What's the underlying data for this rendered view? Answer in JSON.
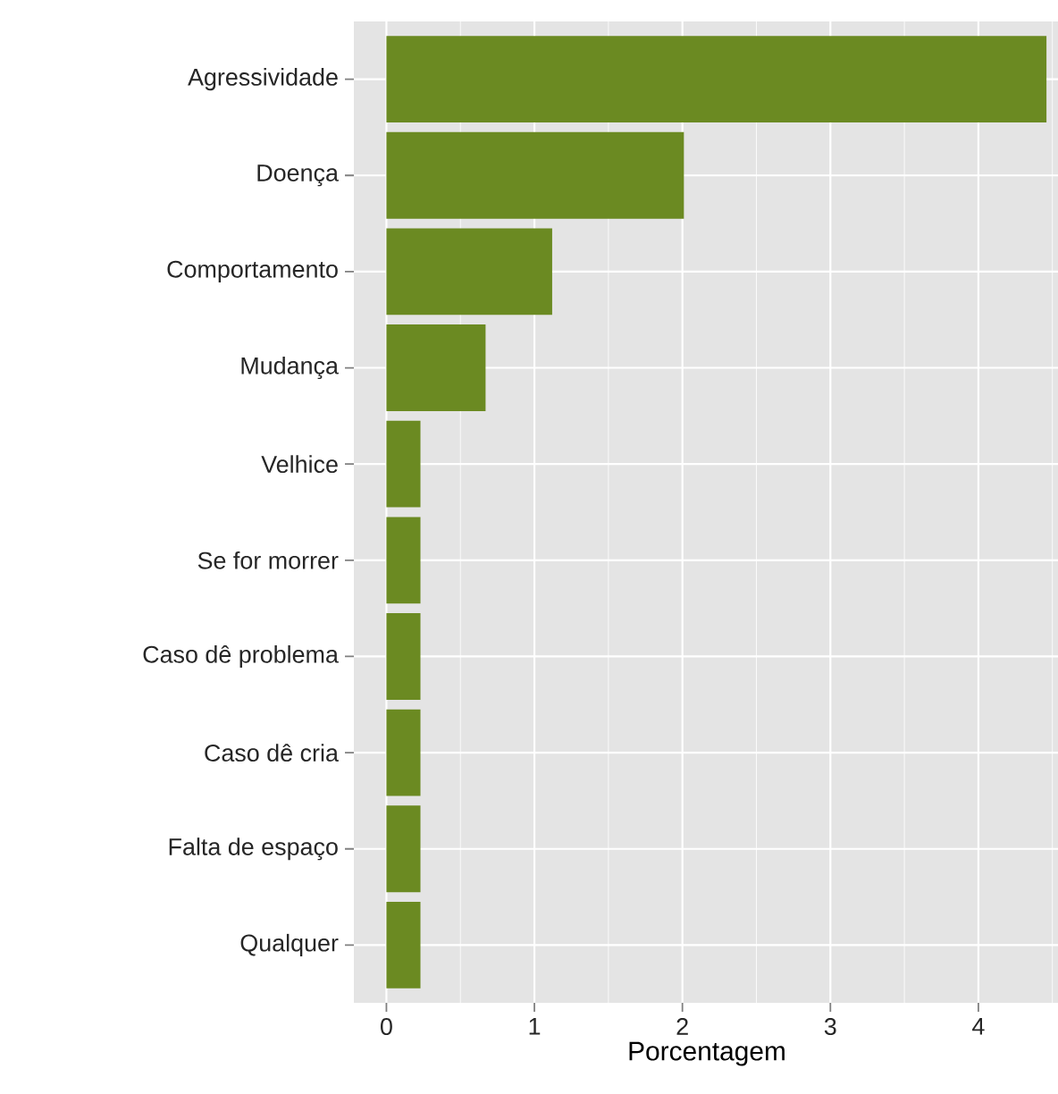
{
  "chart_data": {
    "type": "bar",
    "orientation": "horizontal",
    "xlabel": "Porcentagem",
    "categories": [
      "Agressividade",
      "Doença",
      "Comportamento",
      "Mudança",
      "Velhice",
      "Se for morrer",
      "Caso dê problema",
      "Caso dê cria",
      "Falta de espaço",
      "Qualquer"
    ],
    "values": [
      4.46,
      2.01,
      1.12,
      0.67,
      0.23,
      0.23,
      0.23,
      0.23,
      0.23,
      0.23
    ],
    "color": "#6b8a22",
    "xlim": [
      -0.22,
      4.55
    ],
    "xticks": [
      0,
      1,
      2,
      3,
      4
    ],
    "grid": true
  }
}
